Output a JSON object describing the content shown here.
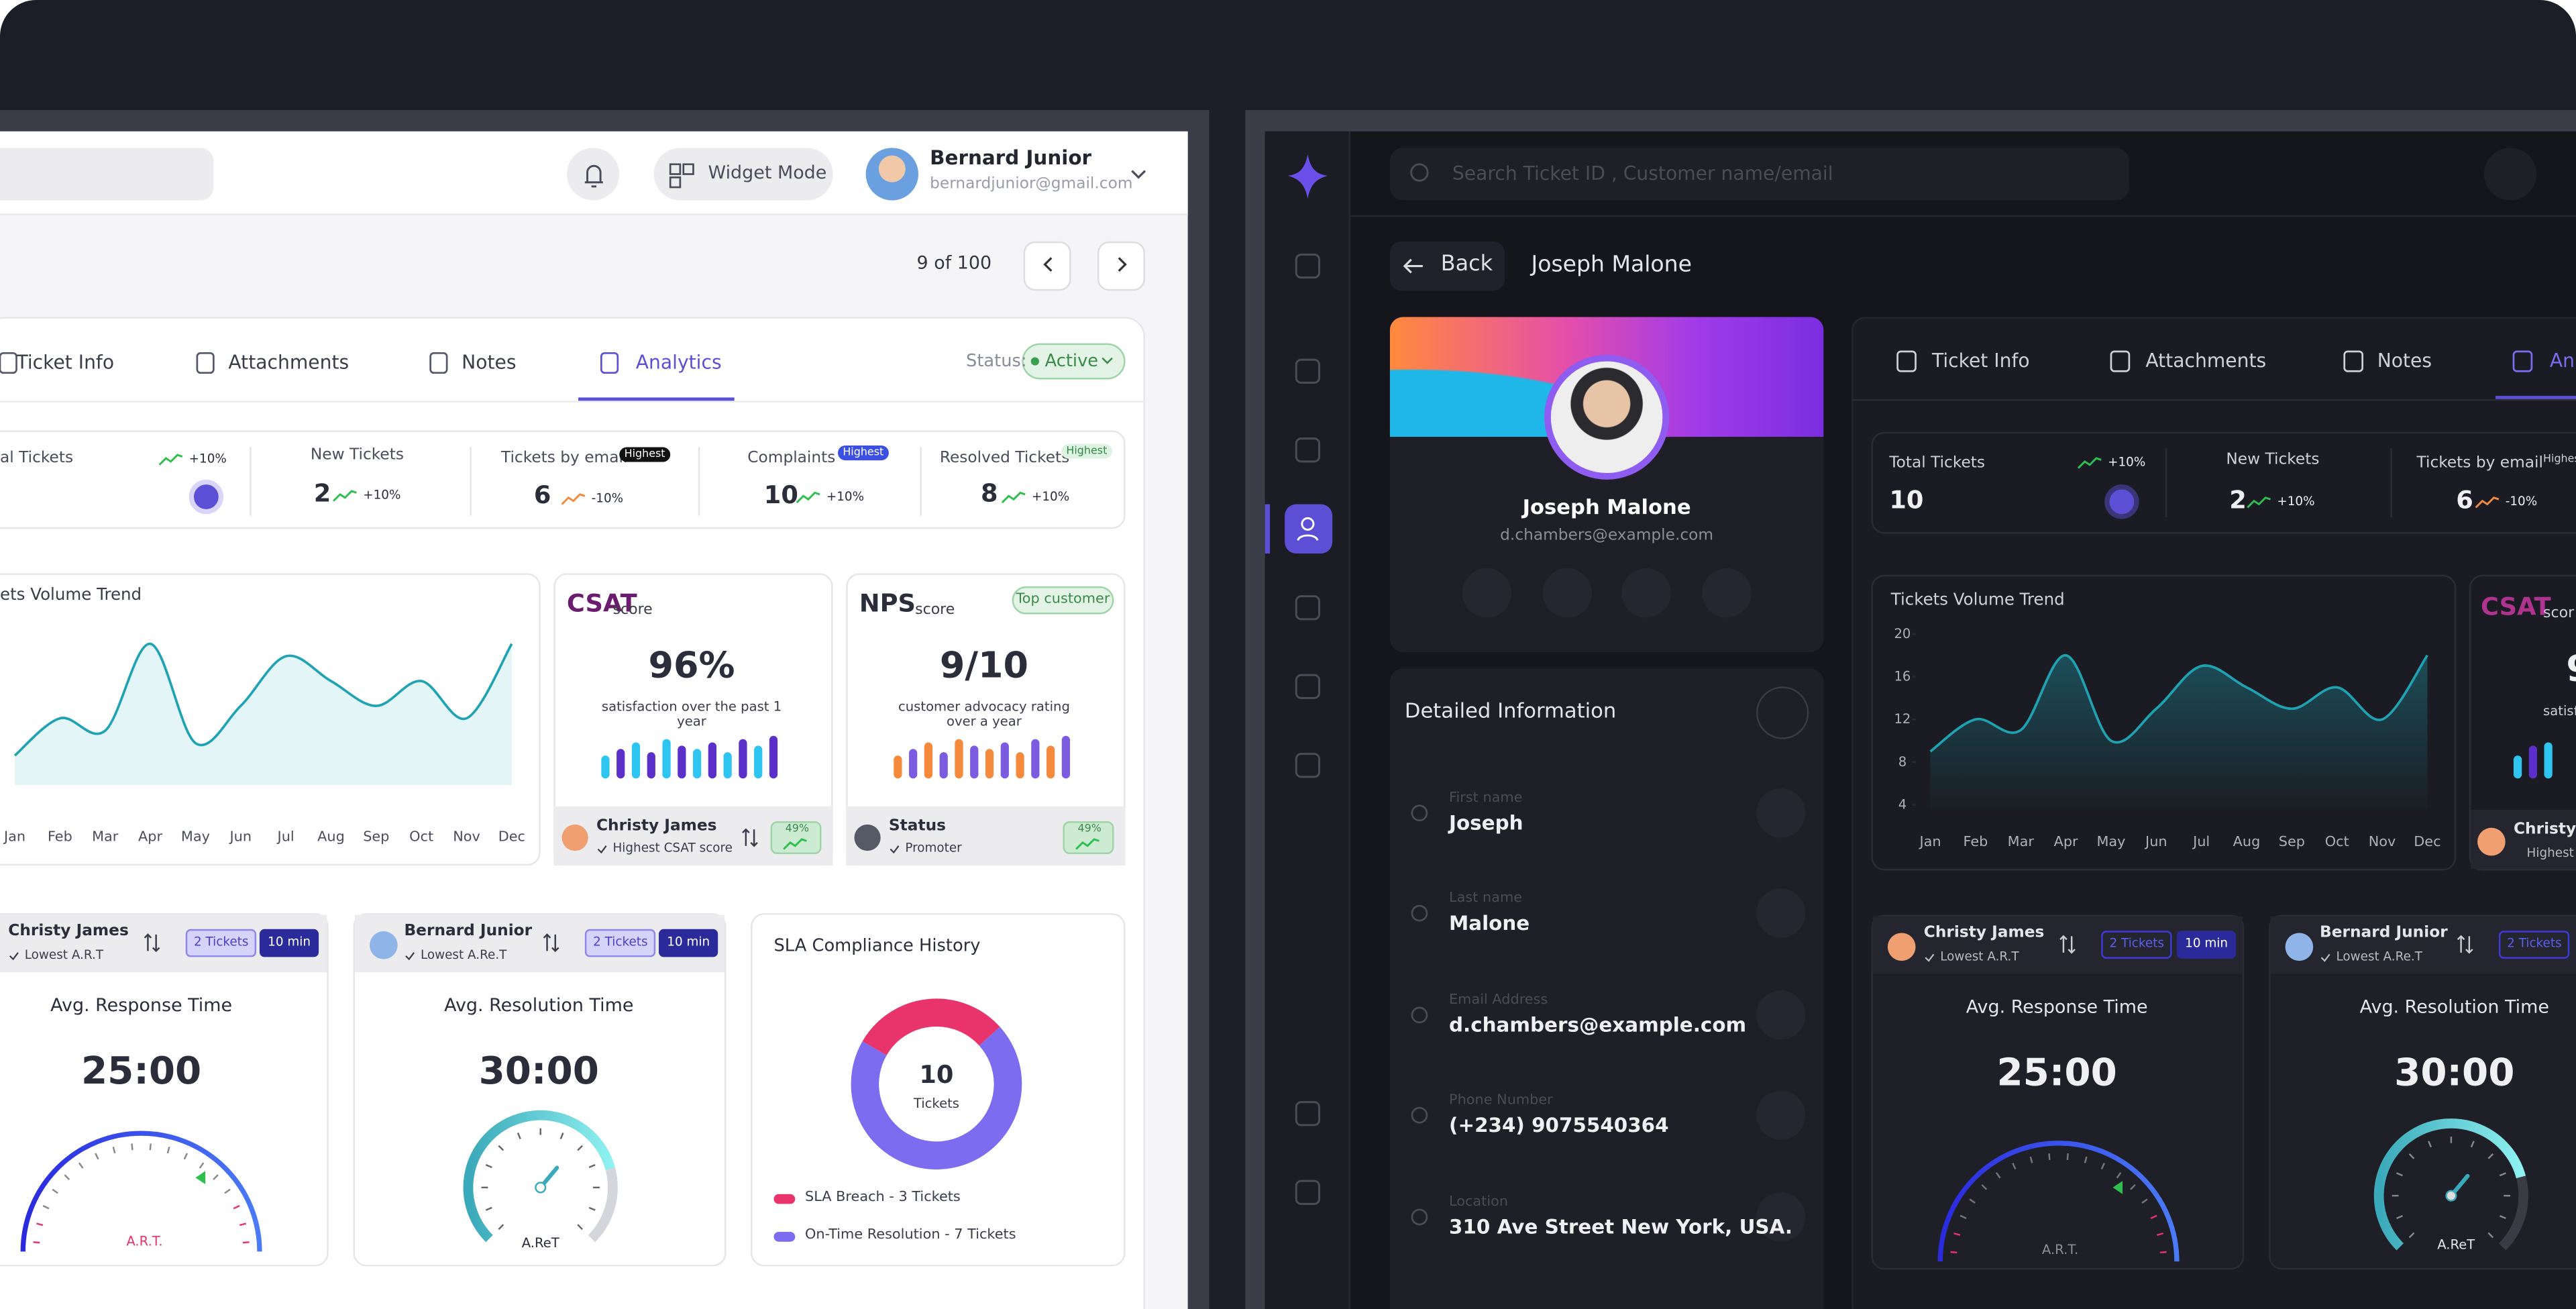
{
  "light": {
    "widget_mode": "Widget Mode",
    "user": {
      "name": "Bernard Junior",
      "email": "bernardjunior@gmail.com"
    },
    "pager": "9 of 100",
    "tabs": [
      "Ticket Info",
      "Attachments",
      "Notes",
      "Analytics"
    ],
    "status_label": "Status:",
    "status": "Active",
    "stats": [
      {
        "label": "al Tickets",
        "change": "+10%"
      },
      {
        "label": "New Tickets",
        "value": 2,
        "change": "+10%"
      },
      {
        "label": "Tickets by email",
        "badge": "Highest",
        "value": 6,
        "change": "-10%"
      },
      {
        "label": "Complaints",
        "badge": "Highest",
        "value": 10,
        "change": "+10%"
      },
      {
        "label": "Resolved Tickets",
        "badge": "Highest",
        "value": 8,
        "change": "+10%"
      }
    ],
    "trend": {
      "title": "ets Volume Trend",
      "months": [
        "Jan",
        "Feb",
        "Mar",
        "Apr",
        "May",
        "Jun",
        "Jul",
        "Aug",
        "Sep",
        "Oct",
        "Nov",
        "Dec"
      ],
      "values": [
        9,
        12,
        11,
        18,
        10,
        13,
        17,
        15,
        13,
        15,
        12,
        18
      ]
    },
    "csat": {
      "title": "CSAT",
      "suffix": "score",
      "value": "96%",
      "caption": "satisfaction over the past 1 year",
      "person": "Christy James",
      "note": "Highest CSAT score",
      "badge": "49%"
    },
    "nps": {
      "title": "NPS",
      "suffix": "score",
      "tag": "Top customer",
      "value": "9/10",
      "caption": "customer advocacy rating over a year",
      "person": "Status",
      "note": "Promoter",
      "badge": "49%"
    },
    "response": {
      "person": "Christy James",
      "note": "Lowest A.R.T",
      "tickets": "2 Tickets",
      "time": "10 min",
      "title": "Avg. Response Time",
      "value": "25:00",
      "gauge": "A.R.T."
    },
    "resolution": {
      "person": "Bernard Junior",
      "note": "Lowest A.Re.T",
      "tickets": "2 Tickets",
      "time": "10 min",
      "title": "Avg. Resolution Time",
      "value": "30:00",
      "gauge": "A.ReT"
    },
    "sla": {
      "title": "SLA Compliance History",
      "total": "10",
      "unit": "Tickets",
      "segments": [
        {
          "label": "SLA Breach - 3 Tickets",
          "value": 3,
          "color": "#e8336b"
        },
        {
          "label": "On-Time Resolution - 7 Tickets",
          "value": 7,
          "color": "#7b6cf0"
        }
      ]
    }
  },
  "dark": {
    "search_placeholder": "Search Ticket ID , Customer name/email",
    "back": "Back",
    "title": "Joseph Malone",
    "profile": {
      "name": "Joseph Malone",
      "email": "d.chambers@example.com"
    },
    "details": {
      "title": "Detailed Information",
      "fields": [
        {
          "label": "First name",
          "value": "Joseph"
        },
        {
          "label": "Last name",
          "value": "Malone"
        },
        {
          "label": "Email Address",
          "value": "d.chambers@example.com"
        },
        {
          "label": "Phone Number",
          "value": "(+234) 9075540364"
        },
        {
          "label": "Location",
          "value": "310 Ave Street New York, USA."
        }
      ]
    },
    "tabs": [
      "Ticket Info",
      "Attachments",
      "Notes",
      "An"
    ],
    "stats": [
      {
        "label": "Total Tickets",
        "value": 10,
        "change": "+10%"
      },
      {
        "label": "New Tickets",
        "value": 2,
        "change": "+10%"
      },
      {
        "label": "Tickets by email",
        "badge": "Highes",
        "value": 6,
        "change": "-10%"
      }
    ],
    "trend": {
      "title": "Tickets Volume Trend",
      "months": [
        "Jan",
        "Feb",
        "Mar",
        "Apr",
        "May",
        "Jun",
        "Jul",
        "Aug",
        "Sep",
        "Oct",
        "Nov",
        "Dec"
      ],
      "values": [
        9,
        12,
        11,
        18,
        10,
        13,
        17,
        15,
        13,
        15,
        12,
        18
      ],
      "ylim": [
        3,
        21
      ],
      "yticks": [
        4,
        8,
        12,
        16,
        20
      ]
    },
    "csat": {
      "title": "CSAT",
      "suffix": "scor",
      "value": "9",
      "caption": "satisf",
      "person": "Christy J",
      "note": "Highest"
    },
    "response": {
      "person": "Christy James",
      "note": "Lowest A.R.T",
      "tickets": "2 Tickets",
      "time": "10 min",
      "title": "Avg. Response Time",
      "value": "25:00",
      "gauge": "A.R.T."
    },
    "resolution": {
      "person": "Bernard Junior",
      "note": "Lowest A.Re.T",
      "tickets": "2 Tickets",
      "title": "Avg. Resolution Time",
      "value": "30:00",
      "gauge": "A.ReT"
    }
  }
}
